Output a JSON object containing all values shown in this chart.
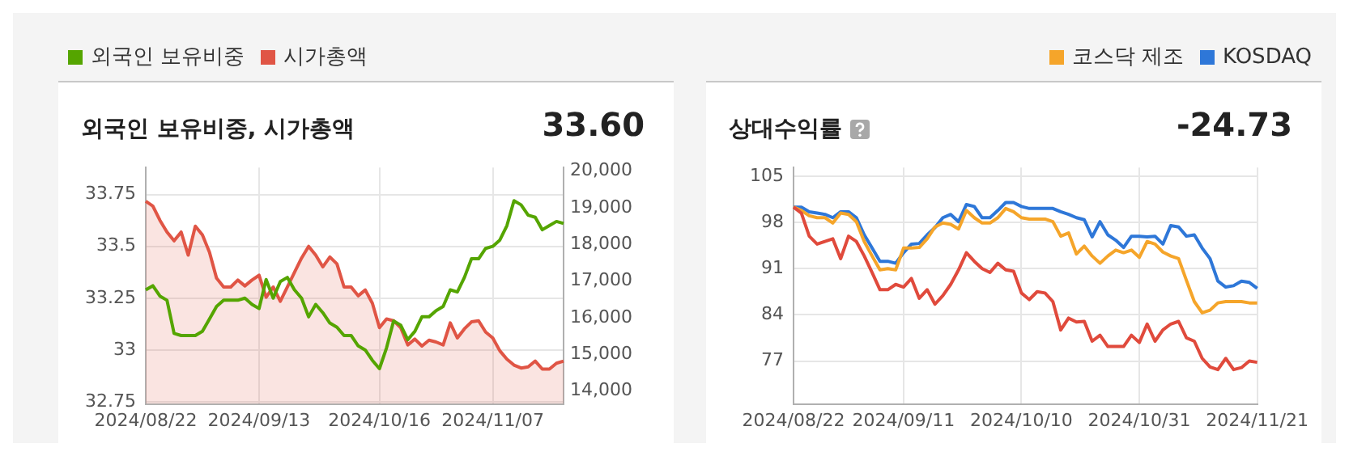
{
  "chart_data": [
    {
      "type": "line",
      "title": "외국인 보유비중, 시가총액",
      "subtitle": "33.60",
      "legend": "top left",
      "grid": true,
      "categories": [
        "2024/08/22",
        null,
        null,
        null,
        null,
        null,
        null,
        null,
        null,
        null,
        null,
        null,
        null,
        null,
        null,
        null,
        "2024/09/13",
        null,
        null,
        null,
        null,
        null,
        null,
        null,
        null,
        null,
        null,
        null,
        null,
        null,
        null,
        null,
        null,
        "2024/10/16",
        null,
        null,
        null,
        null,
        null,
        null,
        null,
        null,
        null,
        null,
        null,
        null,
        null,
        null,
        null,
        "2024/11/07",
        null,
        null,
        null,
        null,
        null,
        null,
        null,
        null,
        null,
        null
      ],
      "ylim": [
        32.74,
        33.88
      ],
      "yticks": [
        32.75,
        33,
        33.25,
        33.5,
        33.75
      ],
      "y2lim": [
        13650,
        20100
      ],
      "y2ticks": [
        {
          "value": 14000,
          "label": "14,000"
        },
        {
          "value": 15000,
          "label": "15,000"
        },
        {
          "value": 16000,
          "label": "16,000"
        },
        {
          "value": 17000,
          "label": "17,000"
        },
        {
          "value": 18000,
          "label": "18,000"
        },
        {
          "value": 19000,
          "label": "19,000"
        },
        {
          "value": 20000,
          "label": "20,000"
        }
      ],
      "series": [
        {
          "name": "외국인 보유비중",
          "color": "#55a500",
          "values": [
            33.29,
            33.31,
            33.26,
            33.24,
            33.08,
            33.07,
            33.07,
            33.07,
            33.09,
            33.15,
            33.21,
            33.24,
            33.24,
            33.24,
            33.25,
            33.22,
            33.2,
            33.34,
            33.25,
            33.33,
            33.35,
            33.29,
            33.25,
            33.16,
            33.22,
            33.18,
            33.13,
            33.11,
            33.07,
            33.07,
            33.02,
            33,
            32.95,
            32.91,
            33.01,
            33.14,
            33.12,
            33.05,
            33.09,
            33.16,
            33.16,
            33.19,
            33.21,
            33.29,
            33.28,
            33.35,
            33.44,
            33.44,
            33.49,
            33.5,
            33.53,
            33.6,
            33.72,
            33.7,
            33.65,
            33.64,
            33.58,
            33.6,
            33.62,
            33.61
          ]
        },
        {
          "name": "시가총액",
          "color": "#e05545",
          "type": "area",
          "axis": "y2",
          "values": [
            19180,
            19050,
            18660,
            18340,
            18100,
            18340,
            17710,
            18500,
            18260,
            17790,
            17080,
            16840,
            16840,
            17030,
            16870,
            17030,
            17160,
            16560,
            16840,
            16450,
            16840,
            17240,
            17630,
            17950,
            17710,
            17390,
            17660,
            17470,
            16840,
            16840,
            16600,
            16760,
            16400,
            15730,
            15970,
            15920,
            15730,
            15260,
            15420,
            15230,
            15390,
            15340,
            15260,
            15860,
            15450,
            15700,
            15890,
            15920,
            15610,
            15450,
            15100,
            14870,
            14710,
            14630,
            14660,
            14820,
            14600,
            14600,
            14760,
            14820
          ]
        }
      ]
    },
    {
      "type": "line",
      "title": "상대수익률",
      "subtitle": "-24.73",
      "legend": "top right",
      "grid": true,
      "categories": [
        "2024/08/22",
        null,
        null,
        null,
        null,
        null,
        null,
        null,
        null,
        null,
        null,
        null,
        null,
        null,
        "2024/09/11",
        null,
        null,
        null,
        null,
        null,
        null,
        null,
        null,
        null,
        null,
        null,
        null,
        null,
        null,
        "2024/10/10",
        null,
        null,
        null,
        null,
        null,
        null,
        null,
        null,
        null,
        null,
        null,
        null,
        null,
        null,
        "2024/10/31",
        null,
        null,
        null,
        null,
        null,
        null,
        null,
        null,
        null,
        null,
        null,
        null,
        null,
        null,
        "2024/11/21"
      ],
      "ylim": [
        70.5,
        106.3
      ],
      "yticks": [
        77,
        84,
        91,
        98,
        105
      ],
      "series": [
        {
          "color": "#e04a3c",
          "values": [
            100.3,
            99.4,
            95.9,
            94.7,
            95.1,
            95.5,
            92.5,
            95.9,
            95.1,
            92.9,
            90.4,
            87.8,
            87.8,
            88.6,
            88.2,
            89.5,
            86.5,
            87.8,
            85.6,
            86.9,
            88.6,
            90.8,
            93.4,
            92.1,
            91,
            90.4,
            91.8,
            90.8,
            90.6,
            87.3,
            86.3,
            87.5,
            87.3,
            86,
            81.7,
            83.5,
            82.9,
            83,
            80,
            80.9,
            79.2,
            79.2,
            79.2,
            80.9,
            79.8,
            82.6,
            80,
            81.7,
            82.6,
            83,
            80.5,
            80,
            77.4,
            76.1,
            75.7,
            77.4,
            75.7,
            76,
            77,
            76.8
          ]
        },
        {
          "name": "코스닥 제조",
          "color": "#f5a52a",
          "values": [
            100.3,
            99.8,
            99,
            98.7,
            98.7,
            97.9,
            99.4,
            99.2,
            98.1,
            95.1,
            92.9,
            90.8,
            91,
            90.8,
            94.1,
            94.1,
            94.2,
            95.5,
            97.3,
            97.9,
            97.7,
            97,
            99.8,
            98.7,
            97.9,
            97.9,
            98.7,
            100.1,
            99.6,
            98.7,
            98.5,
            98.5,
            98.5,
            98.1,
            95.9,
            96.4,
            93.2,
            94.4,
            92.9,
            91.8,
            92.9,
            93.8,
            93.4,
            93.8,
            92.7,
            95.1,
            94.7,
            93.5,
            92.9,
            92.5,
            89.2,
            86,
            84.3,
            84.7,
            85.8,
            86,
            86,
            86,
            85.8,
            85.8
          ]
        },
        {
          "name": "KOSDAQ",
          "color": "#2e77d8",
          "values": [
            100.3,
            100.3,
            99.6,
            99.4,
            99.2,
            98.7,
            99.6,
            99.6,
            98.7,
            96.1,
            94.1,
            92.1,
            92.1,
            91.8,
            93.4,
            94.7,
            94.8,
            96.1,
            97.2,
            98.7,
            99.2,
            98.1,
            100.7,
            100.4,
            98.7,
            98.7,
            99.8,
            101,
            101,
            100.4,
            100.1,
            100.1,
            100.1,
            100.1,
            99.6,
            99.2,
            98.7,
            98.4,
            95.8,
            98.1,
            96.1,
            95.3,
            94.2,
            95.9,
            95.9,
            95.8,
            95.9,
            94.7,
            97.5,
            97.3,
            95.9,
            96.1,
            94.1,
            92.5,
            89.1,
            88.2,
            88.4,
            89.1,
            88.9,
            88
          ]
        }
      ]
    }
  ]
}
